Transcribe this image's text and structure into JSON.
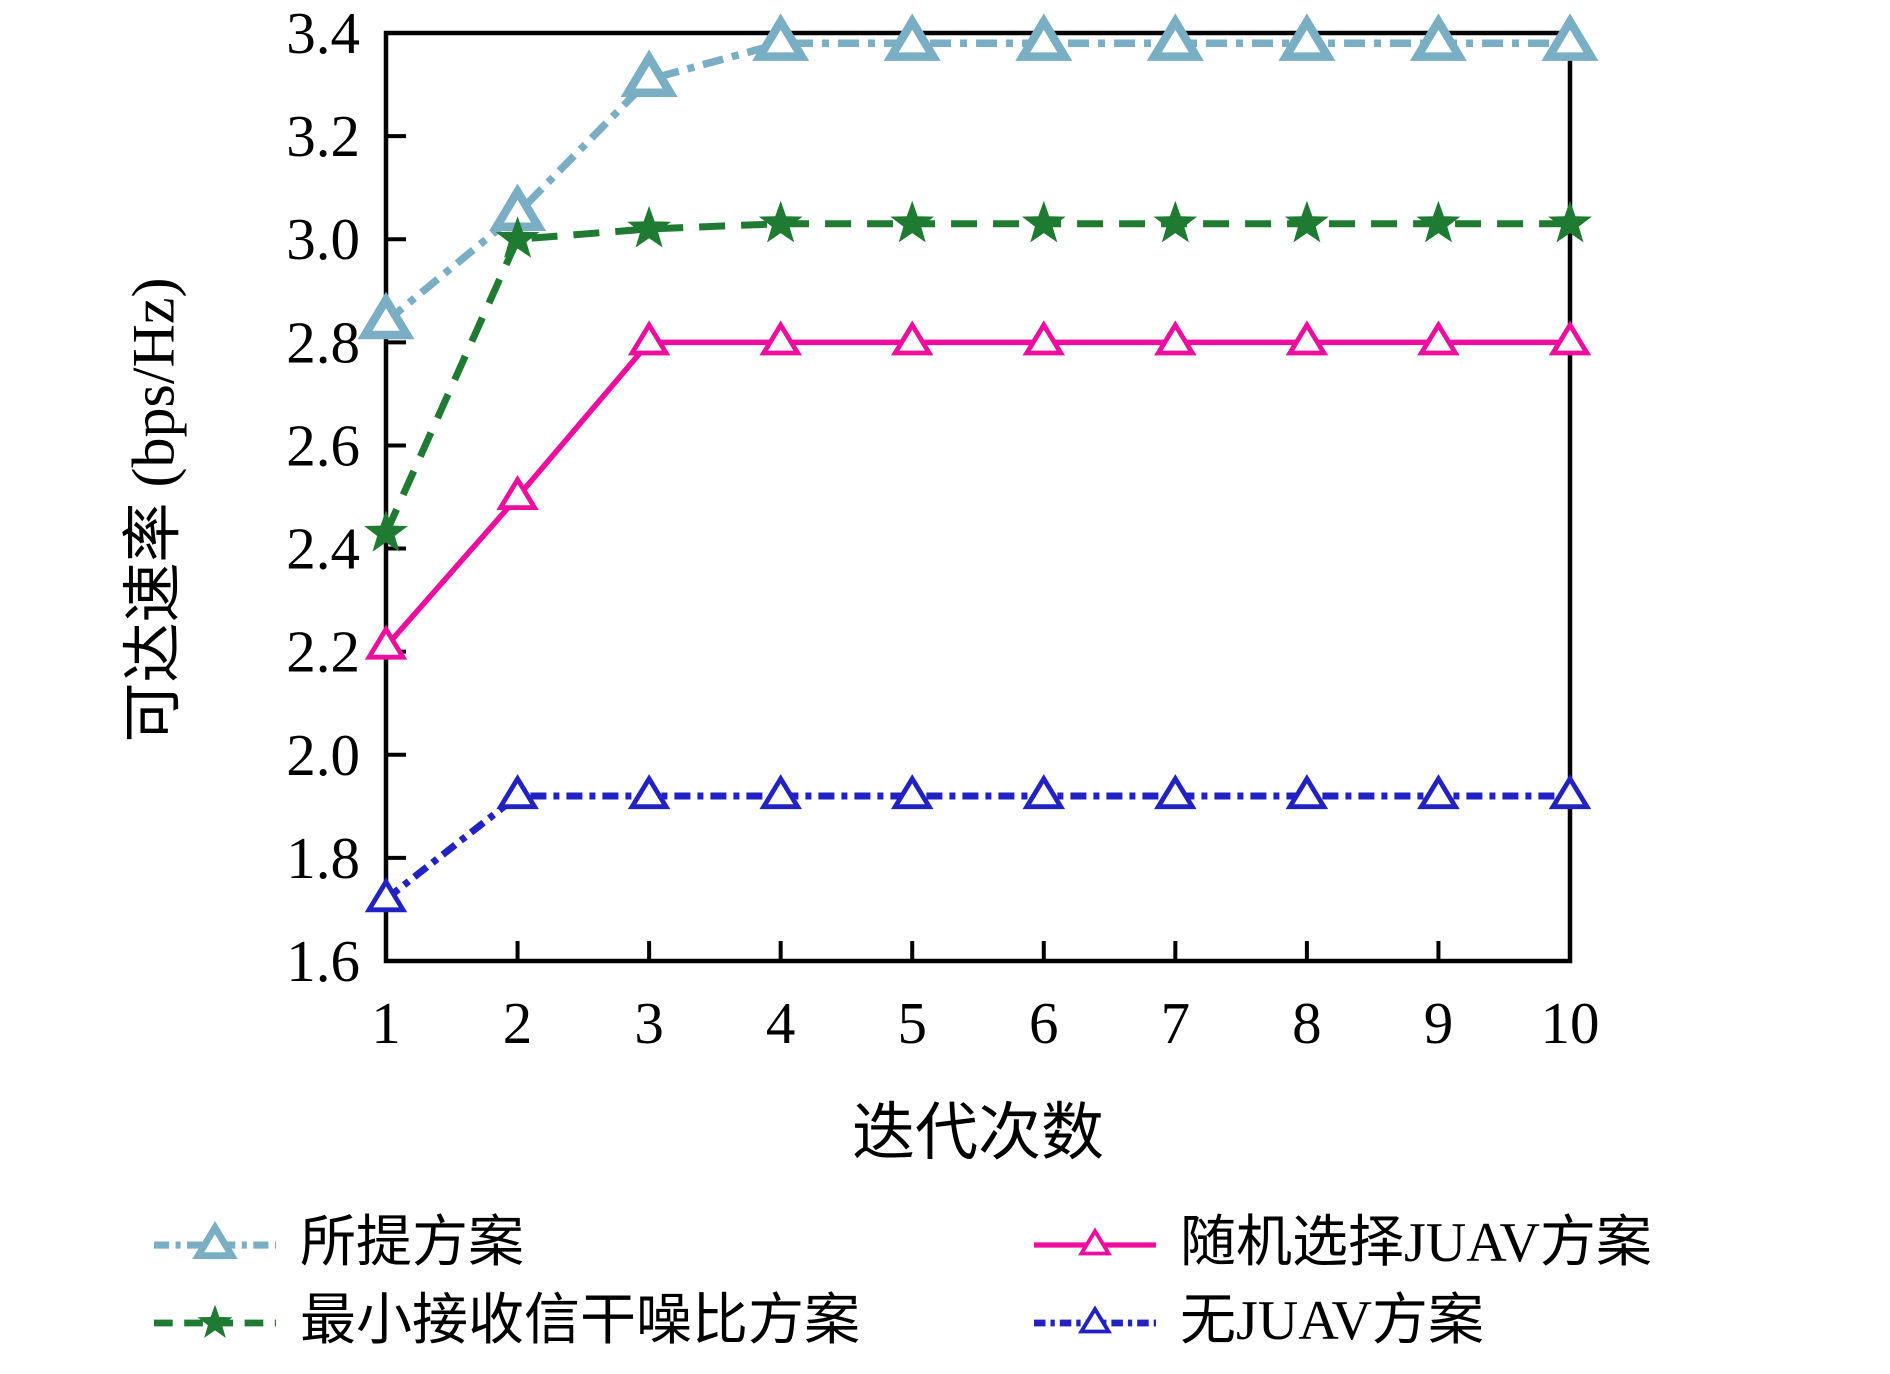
{
  "chart_data": {
    "type": "line",
    "title": "",
    "xlabel": "迭代次数",
    "ylabel": "可达速率 (bps/Hz)",
    "x": [
      1,
      2,
      3,
      4,
      5,
      6,
      7,
      8,
      9,
      10
    ],
    "x_ticks": [
      "1",
      "2",
      "3",
      "4",
      "5",
      "6",
      "7",
      "8",
      "9",
      "10"
    ],
    "y_ticks": [
      "1.6",
      "1.8",
      "2.0",
      "2.2",
      "2.4",
      "2.6",
      "2.8",
      "3.0",
      "3.2",
      "3.4"
    ],
    "xlim": [
      1,
      10
    ],
    "ylim": [
      1.6,
      3.4
    ],
    "grid": false,
    "legend_position": "below-two-columns",
    "axis_color": "#000000",
    "series": [
      {
        "name": "所提方案",
        "color": "#79aec4",
        "line_style": "dash-dot",
        "marker": "triangle-open-thick",
        "values": [
          2.84,
          3.05,
          3.31,
          3.38,
          3.38,
          3.38,
          3.38,
          3.38,
          3.38,
          3.38
        ]
      },
      {
        "name": "最小接收信干噪比方案",
        "color": "#1e7b31",
        "line_style": "dashed",
        "marker": "star-filled",
        "values": [
          2.43,
          3.0,
          3.02,
          3.03,
          3.03,
          3.03,
          3.03,
          3.03,
          3.03,
          3.03
        ]
      },
      {
        "name": "随机选择JUAV方案",
        "color": "#ee0d9e",
        "line_style": "solid",
        "marker": "triangle-open",
        "values": [
          2.21,
          2.5,
          2.8,
          2.8,
          2.8,
          2.8,
          2.8,
          2.8,
          2.8,
          2.8
        ]
      },
      {
        "name": "无JUAV方案",
        "color": "#2121c4",
        "line_style": "dash-dot-dense",
        "marker": "triangle-open",
        "values": [
          1.72,
          1.92,
          1.92,
          1.92,
          1.92,
          1.92,
          1.92,
          1.92,
          1.92,
          1.92
        ]
      }
    ],
    "legend_order": [
      0,
      2,
      1,
      3
    ]
  }
}
